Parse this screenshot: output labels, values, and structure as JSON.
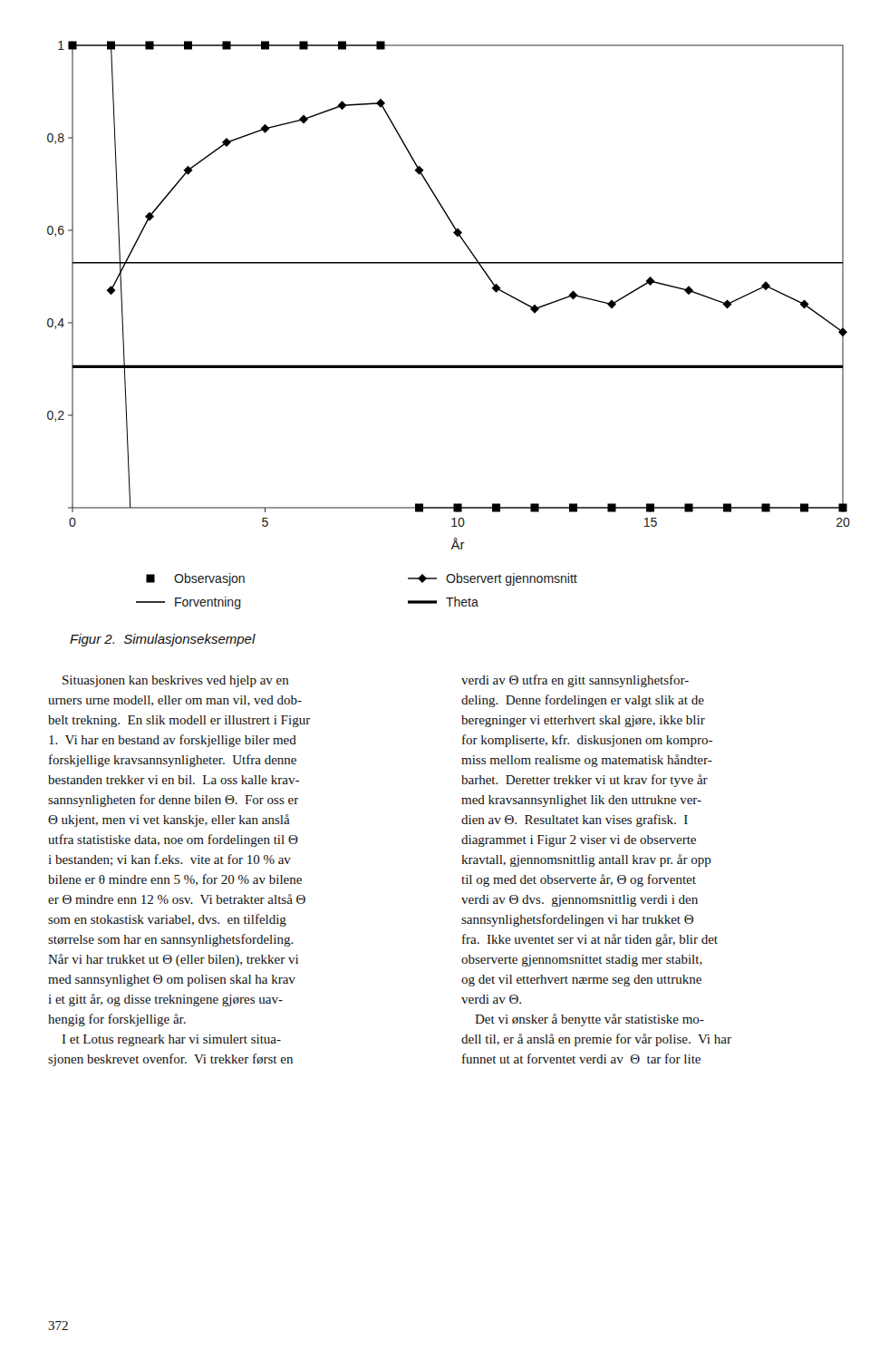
{
  "chart_data": {
    "type": "line",
    "xlabel": "År",
    "xlim": [
      0,
      20
    ],
    "ylim": [
      0,
      1.0
    ],
    "xticks": [
      0,
      5,
      10,
      15,
      20
    ],
    "yticks": [
      {
        "value": 0,
        "label": null
      },
      {
        "value": 0.2,
        "label": "0,2"
      },
      {
        "value": 0.4,
        "label": "0,4"
      },
      {
        "value": 0.6,
        "label": "0,6"
      },
      {
        "value": 0.8,
        "label": "0,8"
      },
      1
    ],
    "grid": false,
    "legend": "bottom",
    "series": [
      {
        "name": "Observasjon",
        "type": "scatter",
        "marker": "square",
        "color": "#000000",
        "x": [
          0,
          1,
          2,
          3,
          4,
          5,
          6,
          7,
          8,
          9,
          10,
          11,
          12,
          13,
          14,
          15,
          16,
          17,
          18,
          19,
          20
        ],
        "values": [
          1,
          1,
          1,
          1,
          1,
          1,
          1,
          1,
          1,
          0,
          0,
          0,
          0,
          0,
          0,
          0,
          0,
          0,
          0,
          0,
          0
        ]
      },
      {
        "name": "Observert gjennomsnitt",
        "type": "line",
        "marker": "diamond",
        "line_style": "solid",
        "color": "#000000",
        "x": [
          1,
          2,
          3,
          4,
          5,
          6,
          7,
          8,
          9,
          10,
          11,
          12,
          13,
          14,
          15,
          16,
          17,
          18,
          19,
          20
        ],
        "values": [
          0.47,
          0.63,
          0.73,
          0.79,
          0.82,
          0.84,
          0.87,
          0.875,
          0.73,
          0.595,
          0.475,
          0.43,
          0.46,
          0.44,
          0.49,
          0.47,
          0.44,
          0.48,
          0.44,
          0.38
        ]
      },
      {
        "name": "Forventning",
        "type": "hline",
        "line_style": "solid",
        "color": "#000000",
        "values": [
          0.53
        ]
      },
      {
        "name": "Theta",
        "type": "hline",
        "line_style": "solid",
        "color": "#000000",
        "values": [
          0.305
        ]
      },
      {
        "type": "line",
        "marker": "none",
        "line_style": "solid",
        "color": "#000000",
        "x": [
          0,
          8,
          8,
          9,
          20,
          20,
          1,
          1.5
        ],
        "values": [
          1,
          1,
          null,
          0,
          0,
          null,
          1,
          0
        ]
      }
    ],
    "caption": "Figur 2.  Simulasjonseksempel",
    "body_text_left": [
      "    Situasjonen kan beskrives ved hjelp av en",
      "urners urne modell, eller om man vil, ved dob-",
      "belt trekning.  En slik modell er illustrert i Figur",
      "1.  Vi har en bestand av forskjellige biler med",
      "forskjellige kravsannsynligheter.  Utfra denne",
      "bestanden trekker vi en bil.  La oss kalle krav-",
      "sannsynligheten for denne bilen Θ.  For oss er",
      "Θ ukjent, men vi vet kanskje, eller kan anslå",
      "utfra statistiske data, noe om fordelingen til Θ",
      "i bestanden; vi kan f.eks.  vite at for 10 % av",
      "bilene er θ mindre enn 5 %, for 20 % av bilene",
      "er Θ mindre enn 12 % osv.  Vi betrakter altså Θ",
      "som en stokastisk variabel, dvs.  en tilfeldig",
      "størrelse som har en sannsynlighetsfordeling.",
      "Når vi har trukket ut Θ (eller bilen), trekker vi",
      "med sannsynlighet Θ om polisen skal ha krav",
      "i et gitt år, og disse trekningene gjøres uav-",
      "hengig for forskjellige år.",
      "    I et Lotus regneark har vi simulert situa-",
      "sjonen beskrevet ovenfor.  Vi trekker først en"
    ],
    "body_text_right": [
      "verdi av Θ utfra en gitt sannsynlighetsfor-",
      "deling.  Denne fordelingen er valgt slik at de",
      "beregninger vi etterhvert skal gjøre, ikke blir",
      "for kompliserte, kfr.  diskusjonen om kompro-",
      "miss mellom realisme og matematisk håndter-",
      "barhet.  Deretter trekker vi ut krav for tyve år",
      "med kravsannsynlighet lik den uttrukne ver-",
      "dien av Θ.  Resultatet kan vises grafisk.  I",
      "diagrammet i Figur 2 viser vi de observerte",
      "kravtall, gjennomsnittlig antall krav pr. år opp",
      "til og med det observerte år, Θ og forventet",
      "verdi av Θ dvs.  gjennomsnittlig verdi i den",
      "sannsynlighetsfordelingen vi har trukket Θ",
      "fra.  Ikke uventet ser vi at når tiden går, blir det",
      "observerte gjennomsnittet stadig mer stabilt,",
      "og det vil etterhvert nærme seg den uttrukne",
      "verdi av Θ.",
      "    Det vi ønsker å benytte vår statistiske mo-",
      "dell til, er å anslå en premie for vår polise.  Vi har",
      "funnet ut at forventet verdi av  Θ  tar for lite"
    ],
    "page_number": "372"
  }
}
